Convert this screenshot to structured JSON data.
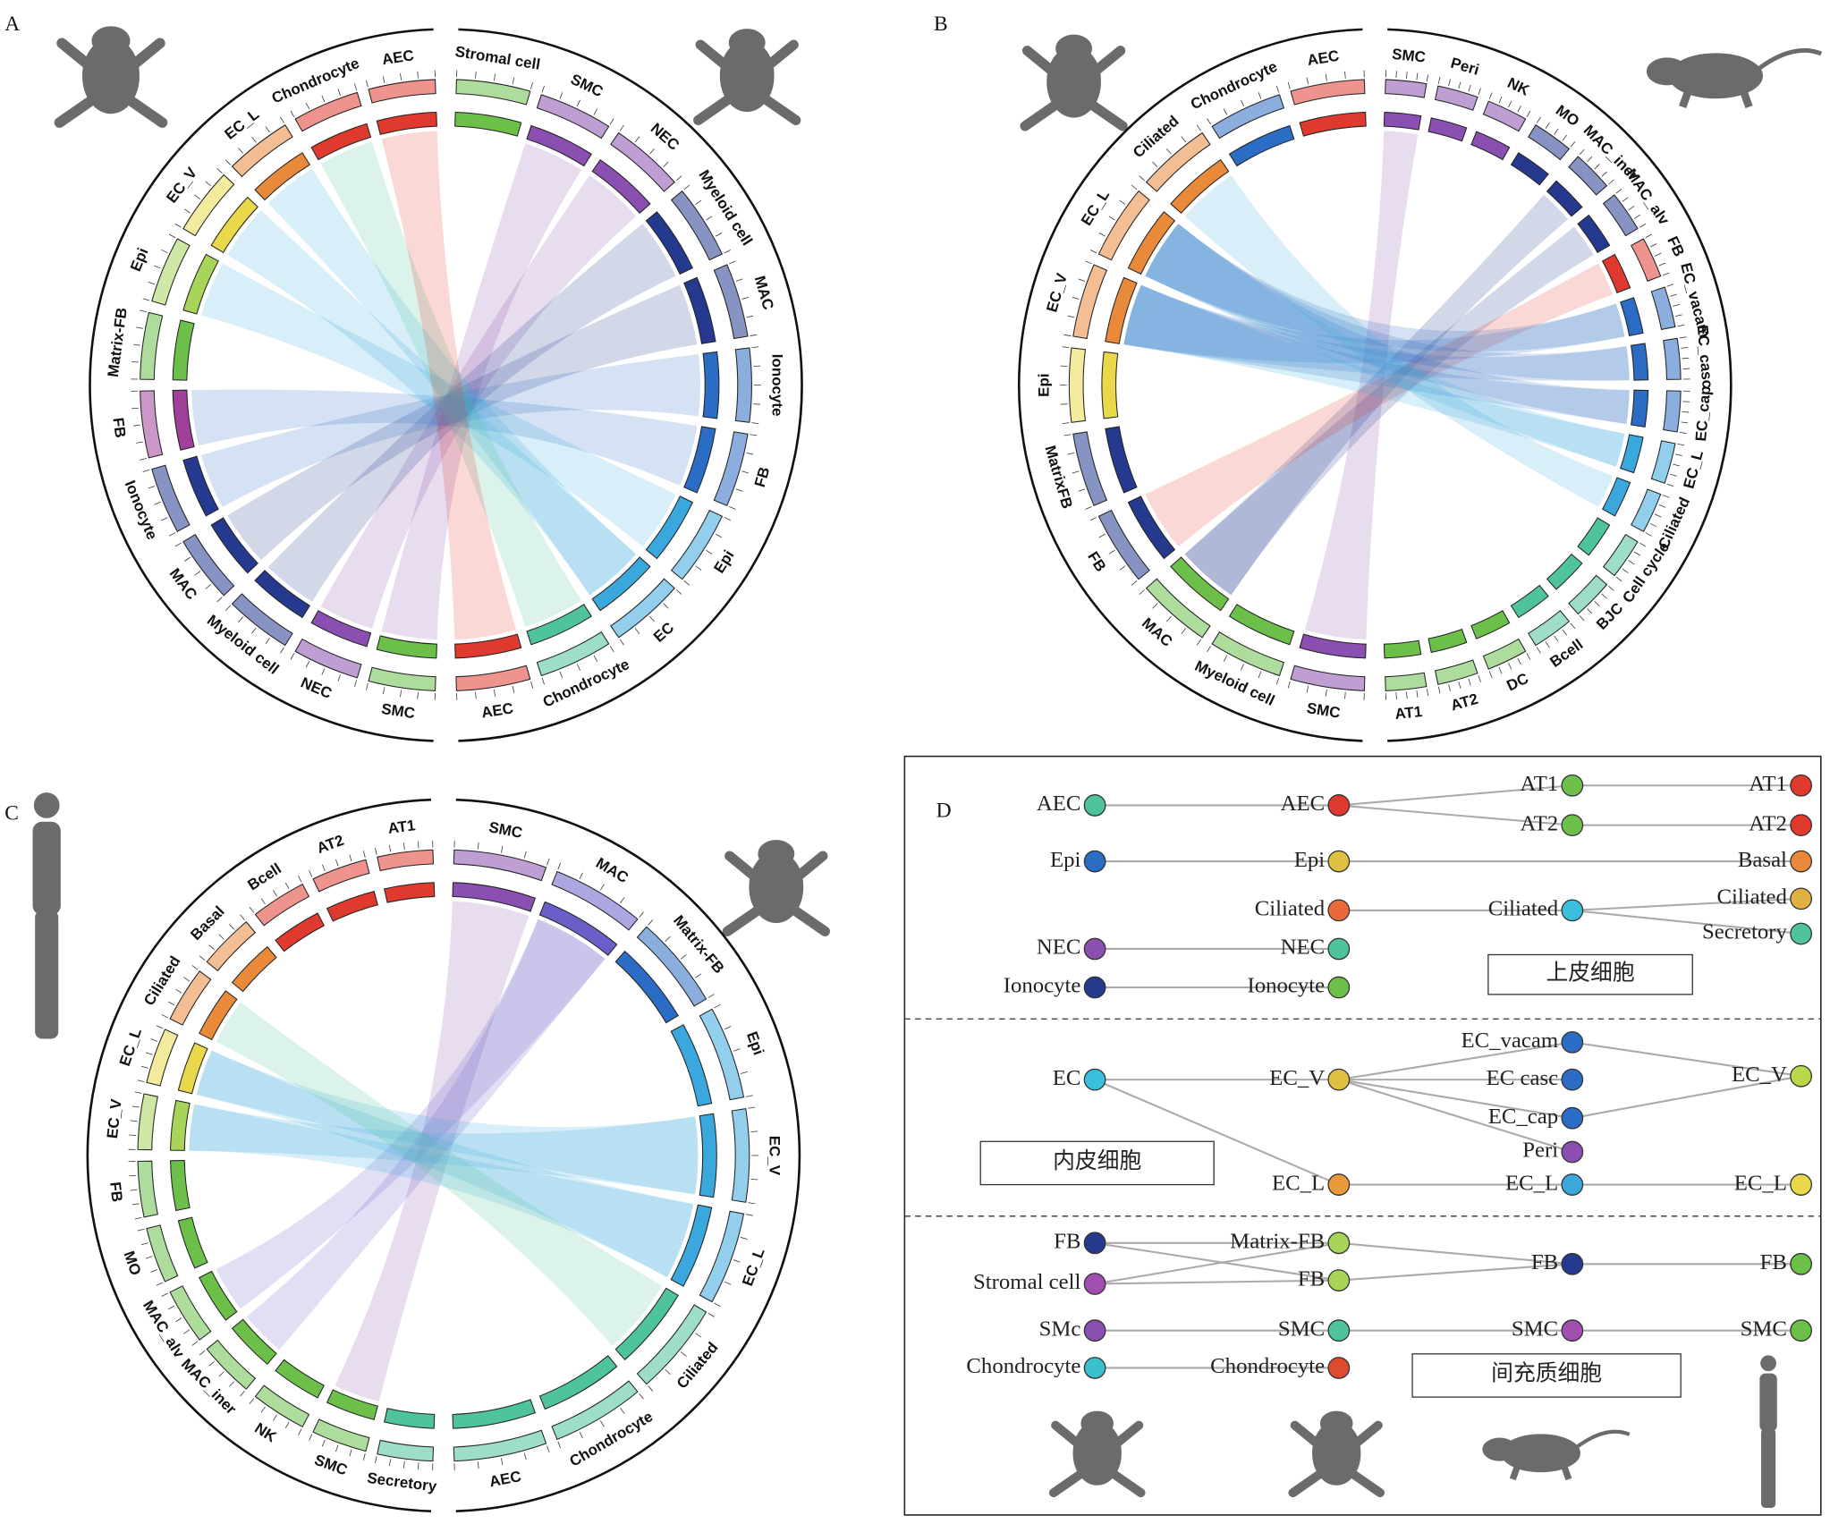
{
  "panels": [
    {
      "label": "A",
      "right": [
        {
          "name": "Stromal cell",
          "color": "#6cc04a"
        },
        {
          "name": "SMC",
          "color": "#8a4fb0"
        },
        {
          "name": "NEC",
          "color": "#8a4fb0"
        },
        {
          "name": "Myeloid cell",
          "color": "#253a8f"
        },
        {
          "name": "MAC",
          "color": "#253a8f"
        },
        {
          "name": "Ionocyte",
          "color": "#2b6cc4"
        },
        {
          "name": "FB",
          "color": "#2b6cc4"
        },
        {
          "name": "Epi",
          "color": "#3aa8dc"
        },
        {
          "name": "EC",
          "color": "#3aa8dc"
        },
        {
          "name": "Chondrocyte",
          "color": "#4fc39b"
        },
        {
          "name": "AEC",
          "color": "#e03a2f"
        }
      ],
      "left": [
        {
          "name": "SMC",
          "color": "#6cc04a"
        },
        {
          "name": "NEC",
          "color": "#8a4fb0"
        },
        {
          "name": "Myeloid cell",
          "color": "#253a8f"
        },
        {
          "name": "MAC",
          "color": "#253a8f"
        },
        {
          "name": "Ionocyte",
          "color": "#253a8f"
        },
        {
          "name": "FB",
          "color": "#a0409a"
        },
        {
          "name": "Matrix-FB",
          "color": "#6cc04a"
        },
        {
          "name": "Epi",
          "color": "#a8d45a"
        },
        {
          "name": "EC_V",
          "color": "#e8d84a"
        },
        {
          "name": "EC_L",
          "color": "#e9893a"
        },
        {
          "name": "Chondrocyte",
          "color": "#e03a2f"
        },
        {
          "name": "AEC",
          "color": "#e03a2f"
        }
      ]
    },
    {
      "label": "B",
      "right": [
        {
          "name": "SMC",
          "color": "#8a4fb0"
        },
        {
          "name": "Peri",
          "color": "#8a4fb0"
        },
        {
          "name": "NK",
          "color": "#8a4fb0"
        },
        {
          "name": "MO",
          "color": "#253a8f"
        },
        {
          "name": "MAC_iner",
          "color": "#253a8f"
        },
        {
          "name": "MAC_alv",
          "color": "#253a8f"
        },
        {
          "name": "FB",
          "color": "#e03a2f"
        },
        {
          "name": "EC_vacam",
          "color": "#2b6cc4"
        },
        {
          "name": "EC_casc",
          "color": "#2b6cc4"
        },
        {
          "name": "EC_cap",
          "color": "#2b6cc4"
        },
        {
          "name": "EC_L",
          "color": "#3aa8dc"
        },
        {
          "name": "Ciliated",
          "color": "#3aa8dc"
        },
        {
          "name": "Cell cycle",
          "color": "#4fc39b"
        },
        {
          "name": "BJC",
          "color": "#4fc39b"
        },
        {
          "name": "Bcell",
          "color": "#4fc39b"
        },
        {
          "name": "DC",
          "color": "#6cc04a"
        },
        {
          "name": "AT2",
          "color": "#6cc04a"
        },
        {
          "name": "AT1",
          "color": "#6cc04a"
        }
      ],
      "left": [
        {
          "name": "SMC",
          "color": "#8a4fb0"
        },
        {
          "name": "Myeloid cell",
          "color": "#6cc04a"
        },
        {
          "name": "MAC",
          "color": "#6cc04a"
        },
        {
          "name": "FB",
          "color": "#253a8f"
        },
        {
          "name": "MatrixFB",
          "color": "#253a8f"
        },
        {
          "name": "Epi",
          "color": "#e8d84a"
        },
        {
          "name": "EC_V",
          "color": "#e9893a"
        },
        {
          "name": "EC_L",
          "color": "#e9893a"
        },
        {
          "name": "Ciliated",
          "color": "#e9893a"
        },
        {
          "name": "Chondrocyte",
          "color": "#2b6cc4"
        },
        {
          "name": "AEC",
          "color": "#e03a2f"
        }
      ]
    },
    {
      "label": "C",
      "right": [
        {
          "name": "SMC",
          "color": "#8a4fb0"
        },
        {
          "name": "MAC",
          "color": "#6a5fc8"
        },
        {
          "name": "Matrix-FB",
          "color": "#2b6cc4"
        },
        {
          "name": "Epi",
          "color": "#3aa8dc"
        },
        {
          "name": "EC_V",
          "color": "#3aa8dc"
        },
        {
          "name": "EC_L",
          "color": "#3aa8dc"
        },
        {
          "name": "Ciliated",
          "color": "#4fc39b"
        },
        {
          "name": "Chondrocyte",
          "color": "#4fc39b"
        },
        {
          "name": "AEC",
          "color": "#4fc39b"
        }
      ],
      "left": [
        {
          "name": "Secretory",
          "color": "#4fc39b"
        },
        {
          "name": "SMC",
          "color": "#6cc04a"
        },
        {
          "name": "NK",
          "color": "#6cc04a"
        },
        {
          "name": "MAC_iner",
          "color": "#6cc04a"
        },
        {
          "name": "MAC_alv",
          "color": "#6cc04a"
        },
        {
          "name": "MO",
          "color": "#6cc04a"
        },
        {
          "name": "FB",
          "color": "#6cc04a"
        },
        {
          "name": "EC_V",
          "color": "#a8d45a"
        },
        {
          "name": "EC_L",
          "color": "#e8d84a"
        },
        {
          "name": "Ciliated",
          "color": "#e9893a"
        },
        {
          "name": "Basal",
          "color": "#e9893a"
        },
        {
          "name": "Bcell",
          "color": "#e03a2f"
        },
        {
          "name": "AT2",
          "color": "#e03a2f"
        },
        {
          "name": "AT1",
          "color": "#e03a2f"
        }
      ]
    }
  ],
  "panel_d": {
    "label": "D",
    "nodes": [
      {
        "label": "AEC",
        "color": "#4fc39b"
      },
      {
        "label": "AEC",
        "color": "#e03a2f"
      },
      {
        "label": "AT1",
        "color": "#6cc04a"
      },
      {
        "label": "AT2",
        "color": "#6cc04a"
      },
      {
        "label": "AT1",
        "color": "#e03a2f"
      },
      {
        "label": "AT2",
        "color": "#e03a2f"
      },
      {
        "label": "Epi",
        "color": "#2b6cc4"
      },
      {
        "label": "Epi",
        "color": "#e0c040"
      },
      {
        "label": "Basal",
        "color": "#e9893a"
      },
      {
        "label": "Ciliated",
        "color": "#e9693a"
      },
      {
        "label": "Ciliated",
        "color": "#3ac0dc"
      },
      {
        "label": "Ciliated",
        "color": "#e0b040"
      },
      {
        "label": "Secretory",
        "color": "#4fc39b"
      },
      {
        "label": "NEC",
        "color": "#8a4fb0"
      },
      {
        "label": "NEC",
        "color": "#4fc39b"
      },
      {
        "label": "Ionocyte",
        "color": "#253a8f"
      },
      {
        "label": "Ionocyte",
        "color": "#6cc04a"
      },
      {
        "label": "EC",
        "color": "#3ac0dc"
      },
      {
        "label": "EC_V",
        "color": "#e0c040"
      },
      {
        "label": "EC_vacam",
        "color": "#2b6cc4"
      },
      {
        "label": "EC casc",
        "color": "#2b6cc4"
      },
      {
        "label": "EC_cap",
        "color": "#2b6cc4"
      },
      {
        "label": "Peri",
        "color": "#8a4fb0"
      },
      {
        "label": "EC_L",
        "color": "#e9993a"
      },
      {
        "label": "EC_L",
        "color": "#3aa8dc"
      },
      {
        "label": "EC_V",
        "color": "#b8d84a"
      },
      {
        "label": "EC_L",
        "color": "#e8d84a"
      },
      {
        "label": "FB",
        "color": "#253a8f"
      },
      {
        "label": "Stromal cell",
        "color": "#a04fb0"
      },
      {
        "label": "Matrix-FB",
        "color": "#a8d45a"
      },
      {
        "label": "FB",
        "color": "#a8d45a"
      },
      {
        "label": "FB",
        "color": "#253a8f"
      },
      {
        "label": "FB",
        "color": "#6cc04a"
      },
      {
        "label": "SMc",
        "color": "#8a4fb0"
      },
      {
        "label": "SMC",
        "color": "#4fc39b"
      },
      {
        "label": "SMC",
        "color": "#a04fb0"
      },
      {
        "label": "SMC",
        "color": "#6cc04a"
      },
      {
        "label": "Chondrocyte",
        "color": "#3ac0cc"
      },
      {
        "label": "Chondrocyte",
        "color": "#e04a2f"
      }
    ],
    "boxes": [
      "上皮细胞",
      "内皮细胞",
      "间充质细胞"
    ]
  }
}
